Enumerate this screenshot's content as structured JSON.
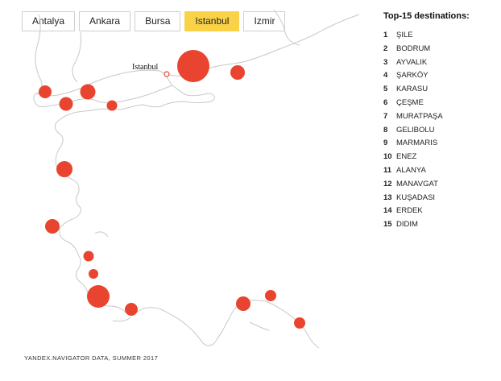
{
  "tabs": [
    {
      "label": "Antalya",
      "active": false
    },
    {
      "label": "Ankara",
      "active": false
    },
    {
      "label": "Bursa",
      "active": false
    },
    {
      "label": "Istanbul",
      "active": true
    },
    {
      "label": "Izmir",
      "active": false
    }
  ],
  "map": {
    "origin_city": "Istanbul",
    "land_color": "#ffffff",
    "coast_color": "#c8c8c8",
    "marker_color": "#e8442f"
  },
  "legend": {
    "title": "Top-15 destinations:",
    "items": [
      {
        "rank": "1",
        "name": "ŞILE"
      },
      {
        "rank": "2",
        "name": "BODRUM"
      },
      {
        "rank": "3",
        "name": "AYVALIK"
      },
      {
        "rank": "4",
        "name": "ŞARKÖY"
      },
      {
        "rank": "5",
        "name": "KARASU"
      },
      {
        "rank": "6",
        "name": "ÇEŞME"
      },
      {
        "rank": "7",
        "name": "MURATPAŞA"
      },
      {
        "rank": "8",
        "name": "GELIBOLU"
      },
      {
        "rank": "9",
        "name": "MARMARIS"
      },
      {
        "rank": "10",
        "name": "ENEZ"
      },
      {
        "rank": "11",
        "name": "ALANYA"
      },
      {
        "rank": "12",
        "name": "MANAVGAT"
      },
      {
        "rank": "13",
        "name": "KUŞADASI"
      },
      {
        "rank": "14",
        "name": "ERDEK"
      },
      {
        "rank": "15",
        "name": "DIDIM"
      }
    ]
  },
  "source": "YANDEX.NAVIGATOR DATA, SUMMER 2017"
}
